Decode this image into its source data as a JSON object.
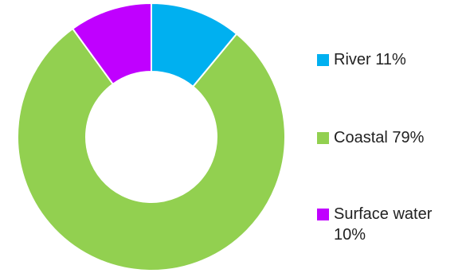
{
  "chart_data": {
    "type": "pie",
    "donut": true,
    "categories": [
      "River",
      "Coastal",
      "Surface water"
    ],
    "values": [
      11,
      79,
      10
    ],
    "labels": [
      "River 11%",
      "Coastal 79%",
      "Surface water 10%"
    ],
    "colors": [
      "#00b0f0",
      "#92d050",
      "#c000ff"
    ],
    "legend_position": "right",
    "title": ""
  }
}
